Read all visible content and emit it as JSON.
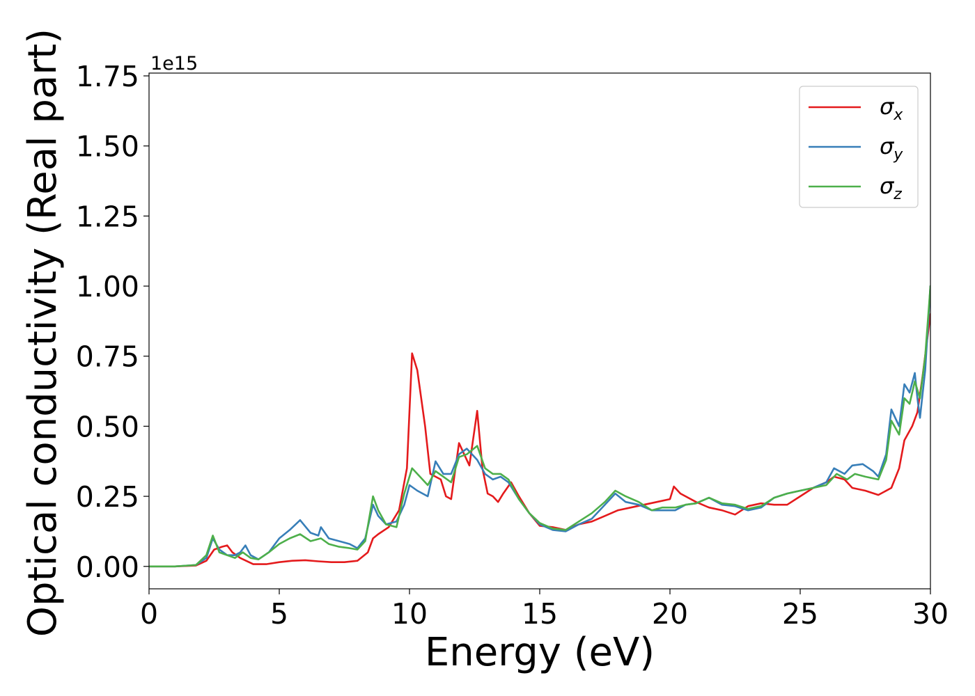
{
  "chart_data": {
    "type": "line",
    "title": "",
    "xlabel": "Energy (eV)",
    "ylabel": "Optical conductivity (Real part)",
    "y_offset_label": "1e15",
    "xlim": [
      0,
      30
    ],
    "ylim": [
      -0.08,
      1.76
    ],
    "x_ticks": [
      0,
      5,
      10,
      15,
      20,
      25,
      30
    ],
    "y_ticks": [
      0.0,
      0.25,
      0.5,
      0.75,
      1.0,
      1.25,
      1.5,
      1.75
    ],
    "y_tick_labels": [
      "0.00",
      "0.25",
      "0.50",
      "0.75",
      "1.00",
      "1.25",
      "1.50",
      "1.75"
    ],
    "grid": false,
    "legend_position": "top-right",
    "series": [
      {
        "name": "σx",
        "legend_base": "σ",
        "legend_sub": "x",
        "color": "#e41a1c",
        "points": [
          [
            0,
            0
          ],
          [
            1,
            0
          ],
          [
            1.8,
            0.003
          ],
          [
            2.2,
            0.02
          ],
          [
            2.5,
            0.06
          ],
          [
            2.8,
            0.07
          ],
          [
            3.0,
            0.075
          ],
          [
            3.2,
            0.05
          ],
          [
            3.5,
            0.03
          ],
          [
            4.0,
            0.008
          ],
          [
            4.5,
            0.008
          ],
          [
            5.0,
            0.015
          ],
          [
            5.5,
            0.02
          ],
          [
            6.0,
            0.022
          ],
          [
            6.5,
            0.018
          ],
          [
            7.0,
            0.015
          ],
          [
            7.5,
            0.015
          ],
          [
            8.0,
            0.02
          ],
          [
            8.4,
            0.05
          ],
          [
            8.6,
            0.1
          ],
          [
            8.8,
            0.115
          ],
          [
            9.2,
            0.14
          ],
          [
            9.6,
            0.2
          ],
          [
            9.9,
            0.35
          ],
          [
            10.1,
            0.76
          ],
          [
            10.3,
            0.7
          ],
          [
            10.6,
            0.5
          ],
          [
            10.8,
            0.33
          ],
          [
            11.0,
            0.32
          ],
          [
            11.2,
            0.31
          ],
          [
            11.4,
            0.25
          ],
          [
            11.6,
            0.24
          ],
          [
            11.9,
            0.44
          ],
          [
            12.1,
            0.4
          ],
          [
            12.3,
            0.36
          ],
          [
            12.6,
            0.555
          ],
          [
            12.8,
            0.35
          ],
          [
            13.0,
            0.26
          ],
          [
            13.2,
            0.25
          ],
          [
            13.4,
            0.23
          ],
          [
            13.6,
            0.26
          ],
          [
            13.9,
            0.3
          ],
          [
            14.2,
            0.25
          ],
          [
            14.6,
            0.19
          ],
          [
            15.0,
            0.145
          ],
          [
            15.5,
            0.14
          ],
          [
            16.0,
            0.13
          ],
          [
            16.5,
            0.15
          ],
          [
            17.0,
            0.16
          ],
          [
            17.5,
            0.18
          ],
          [
            18.0,
            0.2
          ],
          [
            18.5,
            0.21
          ],
          [
            19.0,
            0.22
          ],
          [
            19.5,
            0.23
          ],
          [
            20.0,
            0.24
          ],
          [
            20.15,
            0.285
          ],
          [
            20.4,
            0.26
          ],
          [
            21.0,
            0.23
          ],
          [
            21.5,
            0.21
          ],
          [
            22.0,
            0.2
          ],
          [
            22.5,
            0.185
          ],
          [
            23.0,
            0.215
          ],
          [
            23.5,
            0.225
          ],
          [
            24.0,
            0.22
          ],
          [
            24.5,
            0.22
          ],
          [
            25.0,
            0.25
          ],
          [
            25.5,
            0.28
          ],
          [
            26.0,
            0.3
          ],
          [
            26.3,
            0.32
          ],
          [
            26.7,
            0.31
          ],
          [
            27.0,
            0.28
          ],
          [
            27.5,
            0.27
          ],
          [
            28.0,
            0.255
          ],
          [
            28.5,
            0.28
          ],
          [
            28.8,
            0.35
          ],
          [
            29.0,
            0.45
          ],
          [
            29.3,
            0.5
          ],
          [
            29.5,
            0.55
          ],
          [
            29.7,
            0.68
          ],
          [
            30.0,
            0.9
          ]
        ]
      },
      {
        "name": "σy",
        "legend_base": "σ",
        "legend_sub": "y",
        "color": "#377eb8",
        "points": [
          [
            0,
            0
          ],
          [
            1,
            0
          ],
          [
            1.8,
            0.005
          ],
          [
            2.2,
            0.03
          ],
          [
            2.45,
            0.1
          ],
          [
            2.7,
            0.06
          ],
          [
            3.0,
            0.04
          ],
          [
            3.3,
            0.04
          ],
          [
            3.5,
            0.05
          ],
          [
            3.7,
            0.075
          ],
          [
            3.9,
            0.04
          ],
          [
            4.2,
            0.025
          ],
          [
            4.6,
            0.05
          ],
          [
            5.0,
            0.1
          ],
          [
            5.4,
            0.13
          ],
          [
            5.8,
            0.165
          ],
          [
            6.2,
            0.12
          ],
          [
            6.5,
            0.11
          ],
          [
            6.6,
            0.14
          ],
          [
            6.9,
            0.1
          ],
          [
            7.3,
            0.09
          ],
          [
            7.7,
            0.08
          ],
          [
            8.0,
            0.065
          ],
          [
            8.3,
            0.1
          ],
          [
            8.6,
            0.22
          ],
          [
            8.8,
            0.18
          ],
          [
            9.1,
            0.15
          ],
          [
            9.5,
            0.16
          ],
          [
            9.8,
            0.22
          ],
          [
            10.0,
            0.29
          ],
          [
            10.3,
            0.27
          ],
          [
            10.7,
            0.25
          ],
          [
            11.0,
            0.375
          ],
          [
            11.3,
            0.33
          ],
          [
            11.6,
            0.33
          ],
          [
            11.9,
            0.4
          ],
          [
            12.2,
            0.42
          ],
          [
            12.6,
            0.38
          ],
          [
            12.9,
            0.33
          ],
          [
            13.2,
            0.31
          ],
          [
            13.5,
            0.32
          ],
          [
            13.8,
            0.3
          ],
          [
            14.2,
            0.24
          ],
          [
            14.6,
            0.19
          ],
          [
            15.0,
            0.15
          ],
          [
            15.5,
            0.13
          ],
          [
            16.0,
            0.125
          ],
          [
            16.5,
            0.15
          ],
          [
            17.0,
            0.17
          ],
          [
            17.5,
            0.22
          ],
          [
            17.9,
            0.26
          ],
          [
            18.3,
            0.23
          ],
          [
            18.8,
            0.22
          ],
          [
            19.3,
            0.2
          ],
          [
            19.7,
            0.2
          ],
          [
            20.2,
            0.2
          ],
          [
            20.6,
            0.22
          ],
          [
            21.0,
            0.225
          ],
          [
            21.5,
            0.245
          ],
          [
            22.0,
            0.22
          ],
          [
            22.5,
            0.215
          ],
          [
            23.0,
            0.2
          ],
          [
            23.5,
            0.21
          ],
          [
            24.0,
            0.245
          ],
          [
            24.5,
            0.26
          ],
          [
            25.0,
            0.27
          ],
          [
            25.5,
            0.28
          ],
          [
            26.0,
            0.3
          ],
          [
            26.3,
            0.35
          ],
          [
            26.7,
            0.33
          ],
          [
            27.0,
            0.36
          ],
          [
            27.4,
            0.365
          ],
          [
            27.8,
            0.34
          ],
          [
            28.0,
            0.32
          ],
          [
            28.3,
            0.4
          ],
          [
            28.5,
            0.56
          ],
          [
            28.8,
            0.5
          ],
          [
            29.0,
            0.65
          ],
          [
            29.2,
            0.62
          ],
          [
            29.4,
            0.69
          ],
          [
            29.5,
            0.6
          ],
          [
            29.6,
            0.53
          ],
          [
            29.8,
            0.7
          ],
          [
            30.0,
            1.0
          ]
        ]
      },
      {
        "name": "σz",
        "legend_base": "σ",
        "legend_sub": "z",
        "color": "#4daf4a",
        "points": [
          [
            0,
            0
          ],
          [
            1,
            0
          ],
          [
            1.8,
            0.005
          ],
          [
            2.2,
            0.04
          ],
          [
            2.45,
            0.11
          ],
          [
            2.7,
            0.05
          ],
          [
            3.0,
            0.04
          ],
          [
            3.3,
            0.03
          ],
          [
            3.6,
            0.05
          ],
          [
            3.9,
            0.03
          ],
          [
            4.2,
            0.025
          ],
          [
            4.6,
            0.05
          ],
          [
            5.0,
            0.08
          ],
          [
            5.4,
            0.1
          ],
          [
            5.8,
            0.115
          ],
          [
            6.2,
            0.09
          ],
          [
            6.6,
            0.1
          ],
          [
            6.9,
            0.08
          ],
          [
            7.3,
            0.07
          ],
          [
            7.7,
            0.065
          ],
          [
            8.0,
            0.06
          ],
          [
            8.3,
            0.09
          ],
          [
            8.6,
            0.25
          ],
          [
            8.8,
            0.2
          ],
          [
            9.1,
            0.15
          ],
          [
            9.5,
            0.14
          ],
          [
            9.8,
            0.26
          ],
          [
            10.1,
            0.35
          ],
          [
            10.4,
            0.32
          ],
          [
            10.7,
            0.29
          ],
          [
            11.0,
            0.34
          ],
          [
            11.3,
            0.32
          ],
          [
            11.6,
            0.3
          ],
          [
            11.9,
            0.39
          ],
          [
            12.2,
            0.4
          ],
          [
            12.6,
            0.43
          ],
          [
            12.9,
            0.35
          ],
          [
            13.2,
            0.33
          ],
          [
            13.5,
            0.33
          ],
          [
            13.8,
            0.31
          ],
          [
            14.2,
            0.24
          ],
          [
            14.6,
            0.19
          ],
          [
            15.0,
            0.155
          ],
          [
            15.5,
            0.135
          ],
          [
            16.0,
            0.13
          ],
          [
            16.5,
            0.16
          ],
          [
            17.0,
            0.19
          ],
          [
            17.5,
            0.23
          ],
          [
            17.9,
            0.27
          ],
          [
            18.3,
            0.25
          ],
          [
            18.8,
            0.23
          ],
          [
            19.3,
            0.2
          ],
          [
            19.7,
            0.21
          ],
          [
            20.2,
            0.21
          ],
          [
            20.6,
            0.22
          ],
          [
            21.0,
            0.225
          ],
          [
            21.5,
            0.245
          ],
          [
            22.0,
            0.225
          ],
          [
            22.5,
            0.22
          ],
          [
            23.0,
            0.205
          ],
          [
            23.5,
            0.215
          ],
          [
            24.0,
            0.245
          ],
          [
            24.5,
            0.26
          ],
          [
            25.0,
            0.27
          ],
          [
            25.5,
            0.28
          ],
          [
            26.0,
            0.29
          ],
          [
            26.4,
            0.33
          ],
          [
            26.8,
            0.31
          ],
          [
            27.1,
            0.33
          ],
          [
            27.5,
            0.32
          ],
          [
            28.0,
            0.31
          ],
          [
            28.3,
            0.38
          ],
          [
            28.5,
            0.52
          ],
          [
            28.8,
            0.47
          ],
          [
            29.0,
            0.6
          ],
          [
            29.2,
            0.58
          ],
          [
            29.4,
            0.66
          ],
          [
            29.6,
            0.6
          ],
          [
            29.8,
            0.75
          ],
          [
            30.0,
            1.0
          ]
        ]
      }
    ]
  }
}
